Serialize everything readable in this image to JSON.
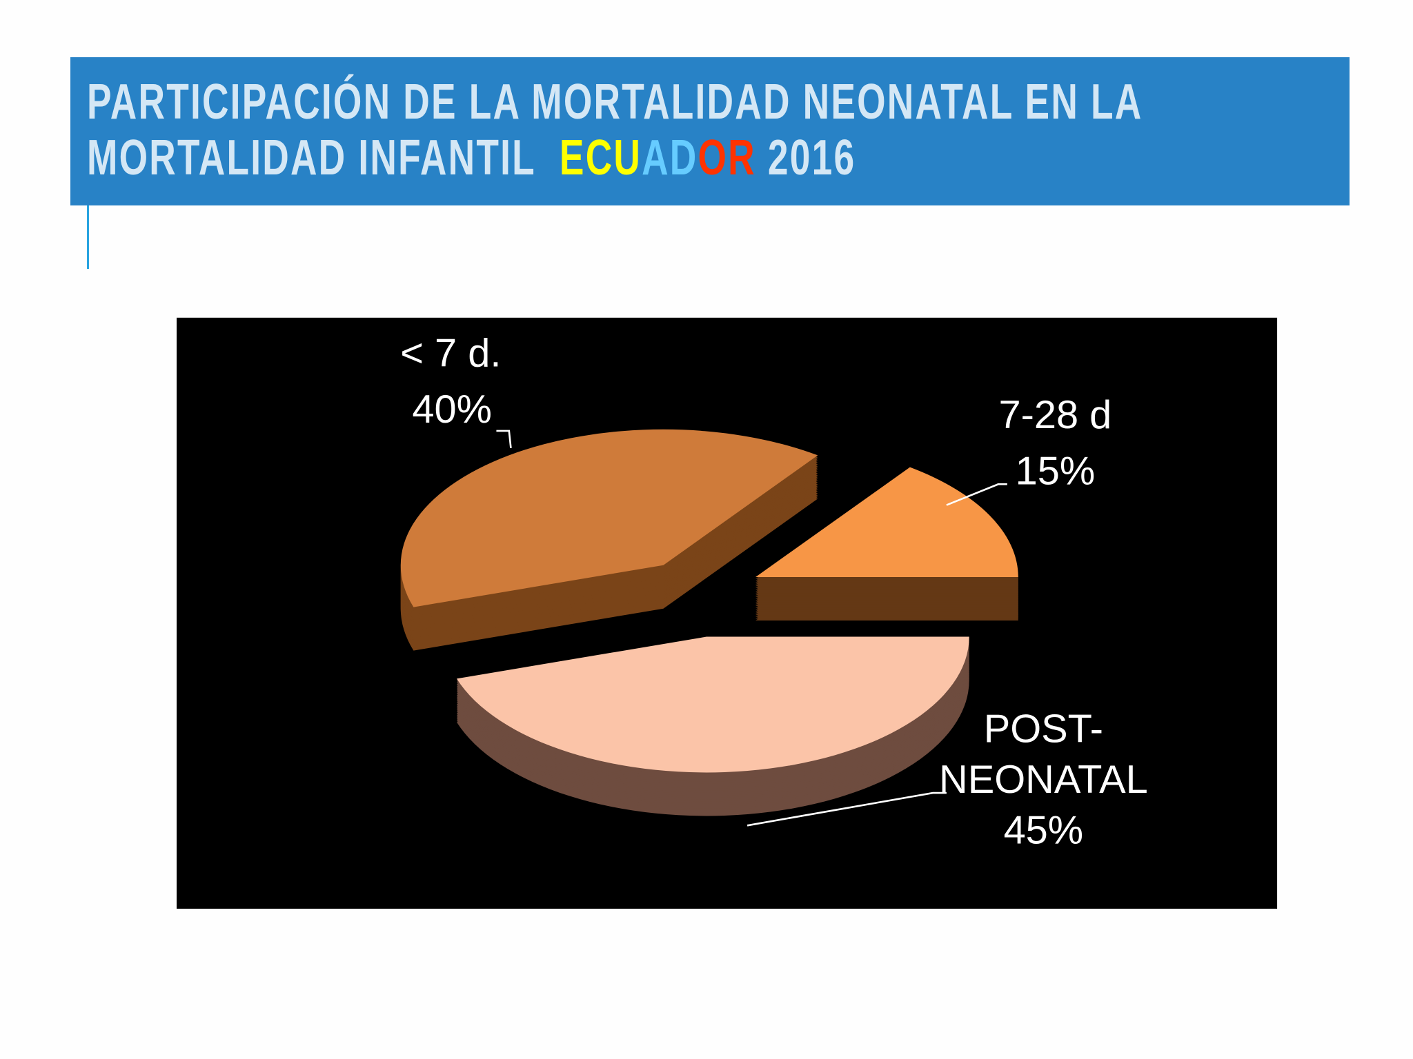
{
  "header": {
    "line1": "PARTICIPACIÓN DE LA MORTALIDAD NEONATAL EN LA",
    "line2_prefix": "MORTALIDAD INFANTIL",
    "country_letters": [
      {
        "ch": "E",
        "color": "#ffff00"
      },
      {
        "ch": "C",
        "color": "#ffff00"
      },
      {
        "ch": "U",
        "color": "#ffff00"
      },
      {
        "ch": "A",
        "color": "#66ccff"
      },
      {
        "ch": "D",
        "color": "#66ccff"
      },
      {
        "ch": "O",
        "color": "#ff3300"
      },
      {
        "ch": "R",
        "color": "#ff3300"
      }
    ],
    "year": "2016"
  },
  "chart_data": {
    "type": "pie",
    "style": "3d-exploded",
    "background": "#000000",
    "slices": [
      {
        "label_lines": [
          "< 7 d.",
          "40%"
        ],
        "category": "< 7 d.",
        "value": 40,
        "color": "#cf7b3a",
        "side_color": "#7a4418"
      },
      {
        "label_lines": [
          "7-28 d",
          "15%"
        ],
        "category": "7-28 d",
        "value": 15,
        "color": "#f79646",
        "side_color": "#643815"
      },
      {
        "label_lines": [
          "POST-",
          "NEONATAL",
          "45%"
        ],
        "category": "POST-NEONATAL",
        "value": 45,
        "color": "#fbc4a8",
        "side_color": "#6e4c3f"
      }
    ]
  }
}
